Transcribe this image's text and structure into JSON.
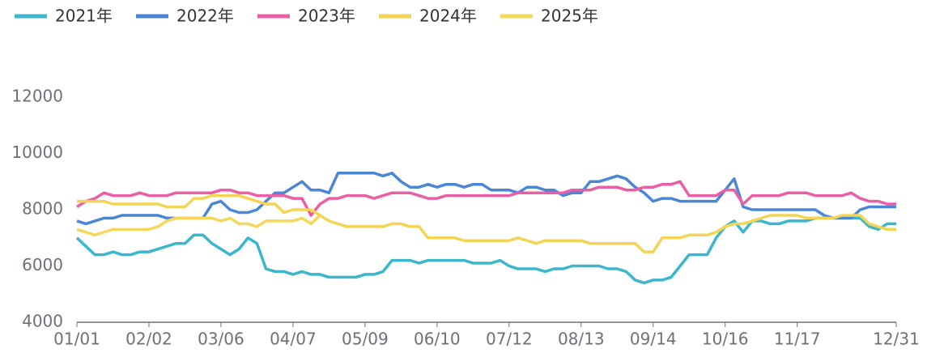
{
  "chart_data": {
    "type": "line",
    "categories": [
      "01/01",
      null,
      null,
      null,
      null,
      null,
      null,
      null,
      "02/02",
      null,
      null,
      null,
      null,
      null,
      null,
      null,
      "03/06",
      null,
      null,
      null,
      null,
      null,
      null,
      null,
      "04/07",
      null,
      null,
      null,
      null,
      null,
      null,
      null,
      "05/09",
      null,
      null,
      null,
      null,
      null,
      null,
      null,
      "06/10",
      null,
      null,
      null,
      null,
      null,
      null,
      null,
      "07/12",
      null,
      null,
      null,
      null,
      null,
      null,
      null,
      "08/13",
      null,
      null,
      null,
      null,
      null,
      null,
      null,
      "09/14",
      null,
      null,
      null,
      null,
      null,
      null,
      null,
      "10/16",
      null,
      null,
      null,
      null,
      null,
      null,
      null,
      "11/17",
      null,
      null,
      null,
      null,
      null,
      null,
      null,
      null,
      null,
      null,
      "12/31"
    ],
    "series": [
      {
        "name": "2021年",
        "color": "#3bb6cc",
        "values": [
          7000,
          6700,
          6400,
          6400,
          6500,
          6400,
          6400,
          6500,
          6500,
          6600,
          6700,
          6800,
          6800,
          7100,
          7100,
          6800,
          6600,
          6400,
          6600,
          7000,
          6800,
          5900,
          5800,
          5800,
          5700,
          5800,
          5700,
          5700,
          5600,
          5600,
          5600,
          5600,
          5700,
          5700,
          5800,
          6200,
          6200,
          6200,
          6100,
          6200,
          6200,
          6200,
          6200,
          6200,
          6100,
          6100,
          6100,
          6200,
          6000,
          5900,
          5900,
          5900,
          5800,
          5900,
          5900,
          6000,
          6000,
          6000,
          6000,
          5900,
          5900,
          5800,
          5500,
          5400,
          5500,
          5500,
          5600,
          6000,
          6400,
          6400,
          6400,
          7000,
          7400,
          7600,
          7200,
          7600,
          7600,
          7500,
          7500,
          7600,
          7600,
          7600,
          7700,
          7700,
          7700,
          7700,
          7700,
          7700,
          7400,
          7300,
          7500,
          7500
        ]
      },
      {
        "name": "2022年",
        "color": "#4a86d6",
        "values": [
          7600,
          7500,
          7600,
          7700,
          7700,
          7800,
          7800,
          7800,
          7800,
          7800,
          7700,
          7700,
          7700,
          7700,
          7700,
          8200,
          8300,
          8000,
          7900,
          7900,
          8000,
          8300,
          8600,
          8600,
          8800,
          9000,
          8700,
          8700,
          8600,
          9300,
          9300,
          9300,
          9300,
          9300,
          9200,
          9300,
          9000,
          8800,
          8800,
          8900,
          8800,
          8900,
          8900,
          8800,
          8900,
          8900,
          8700,
          8700,
          8700,
          8600,
          8800,
          8800,
          8700,
          8700,
          8500,
          8600,
          8600,
          9000,
          9000,
          9100,
          9200,
          9100,
          8800,
          8600,
          8300,
          8400,
          8400,
          8300,
          8300,
          8300,
          8300,
          8300,
          8700,
          9100,
          8100,
          8000,
          8000,
          8000,
          8000,
          8000,
          8000,
          8000,
          8000,
          7800,
          7700,
          7700,
          7700,
          8000,
          8100,
          8100,
          8100,
          8100
        ]
      },
      {
        "name": "2023年",
        "color": "#ea5ea6",
        "values": [
          8100,
          8300,
          8400,
          8600,
          8500,
          8500,
          8500,
          8600,
          8500,
          8500,
          8500,
          8600,
          8600,
          8600,
          8600,
          8600,
          8700,
          8700,
          8600,
          8600,
          8500,
          8500,
          8500,
          8500,
          8400,
          8400,
          7800,
          8200,
          8400,
          8400,
          8500,
          8500,
          8500,
          8400,
          8500,
          8600,
          8600,
          8600,
          8500,
          8400,
          8400,
          8500,
          8500,
          8500,
          8500,
          8500,
          8500,
          8500,
          8500,
          8600,
          8600,
          8600,
          8600,
          8600,
          8600,
          8700,
          8700,
          8700,
          8800,
          8800,
          8800,
          8700,
          8700,
          8800,
          8800,
          8900,
          8900,
          9000,
          8500,
          8500,
          8500,
          8500,
          8700,
          8700,
          8200,
          8500,
          8500,
          8500,
          8500,
          8600,
          8600,
          8600,
          8500,
          8500,
          8500,
          8500,
          8600,
          8400,
          8300,
          8300,
          8200,
          8200
        ]
      },
      {
        "name": "2024年",
        "color": "#f3d454",
        "values": [
          8300,
          8300,
          8300,
          8300,
          8200,
          8200,
          8200,
          8200,
          8200,
          8200,
          8100,
          8100,
          8100,
          8400,
          8400,
          8500,
          8500,
          8500,
          8500,
          8400,
          8300,
          8200,
          8200,
          7900,
          8000,
          8000,
          8000,
          7800,
          7600,
          7500,
          7400,
          7400,
          7400,
          7400,
          7400,
          7500,
          7500,
          7400,
          7400,
          7000,
          7000,
          7000,
          7000,
          6900,
          6900,
          6900,
          6900,
          6900,
          6900,
          7000,
          6900,
          6800,
          6900,
          6900,
          6900,
          6900,
          6900,
          6800,
          6800,
          6800,
          6800,
          6800,
          6800,
          6500,
          6500,
          7000,
          7000,
          7000,
          7100,
          7100,
          7100,
          7200,
          7400,
          7500,
          7500,
          7600,
          7700,
          7800,
          7800,
          7800,
          7800,
          7700,
          7700,
          7700,
          7700,
          7800,
          7800,
          7800,
          7500,
          7400,
          7300,
          7300
        ]
      },
      {
        "name": "2025年",
        "color": "#f5d85a",
        "values": [
          7300,
          7200,
          7100,
          7200,
          7300,
          7300,
          7300,
          7300,
          7300,
          7400,
          7600,
          7700,
          7700,
          7700,
          7700,
          7700,
          7600,
          7700,
          7500,
          7500,
          7400,
          7600,
          7600,
          7600,
          7600,
          7700,
          7500,
          7800,
          null,
          null,
          null,
          null,
          null,
          null,
          null,
          null,
          null,
          null,
          null,
          null,
          null,
          null,
          null,
          null,
          null,
          null,
          null,
          null,
          null,
          null,
          null,
          null,
          null,
          null,
          null,
          null,
          null,
          null,
          null,
          null,
          null,
          null,
          null,
          null,
          null,
          null,
          null,
          null,
          null,
          null,
          null,
          null,
          null,
          null,
          null,
          null,
          null,
          null,
          null,
          null,
          null,
          null,
          null,
          null,
          null,
          null,
          null,
          null,
          null,
          null,
          null,
          null
        ]
      }
    ],
    "ylim": [
      4000,
      12000
    ],
    "yticks": [
      4000,
      6000,
      8000,
      10000,
      12000
    ],
    "grid": false,
    "legend": "top-left"
  }
}
